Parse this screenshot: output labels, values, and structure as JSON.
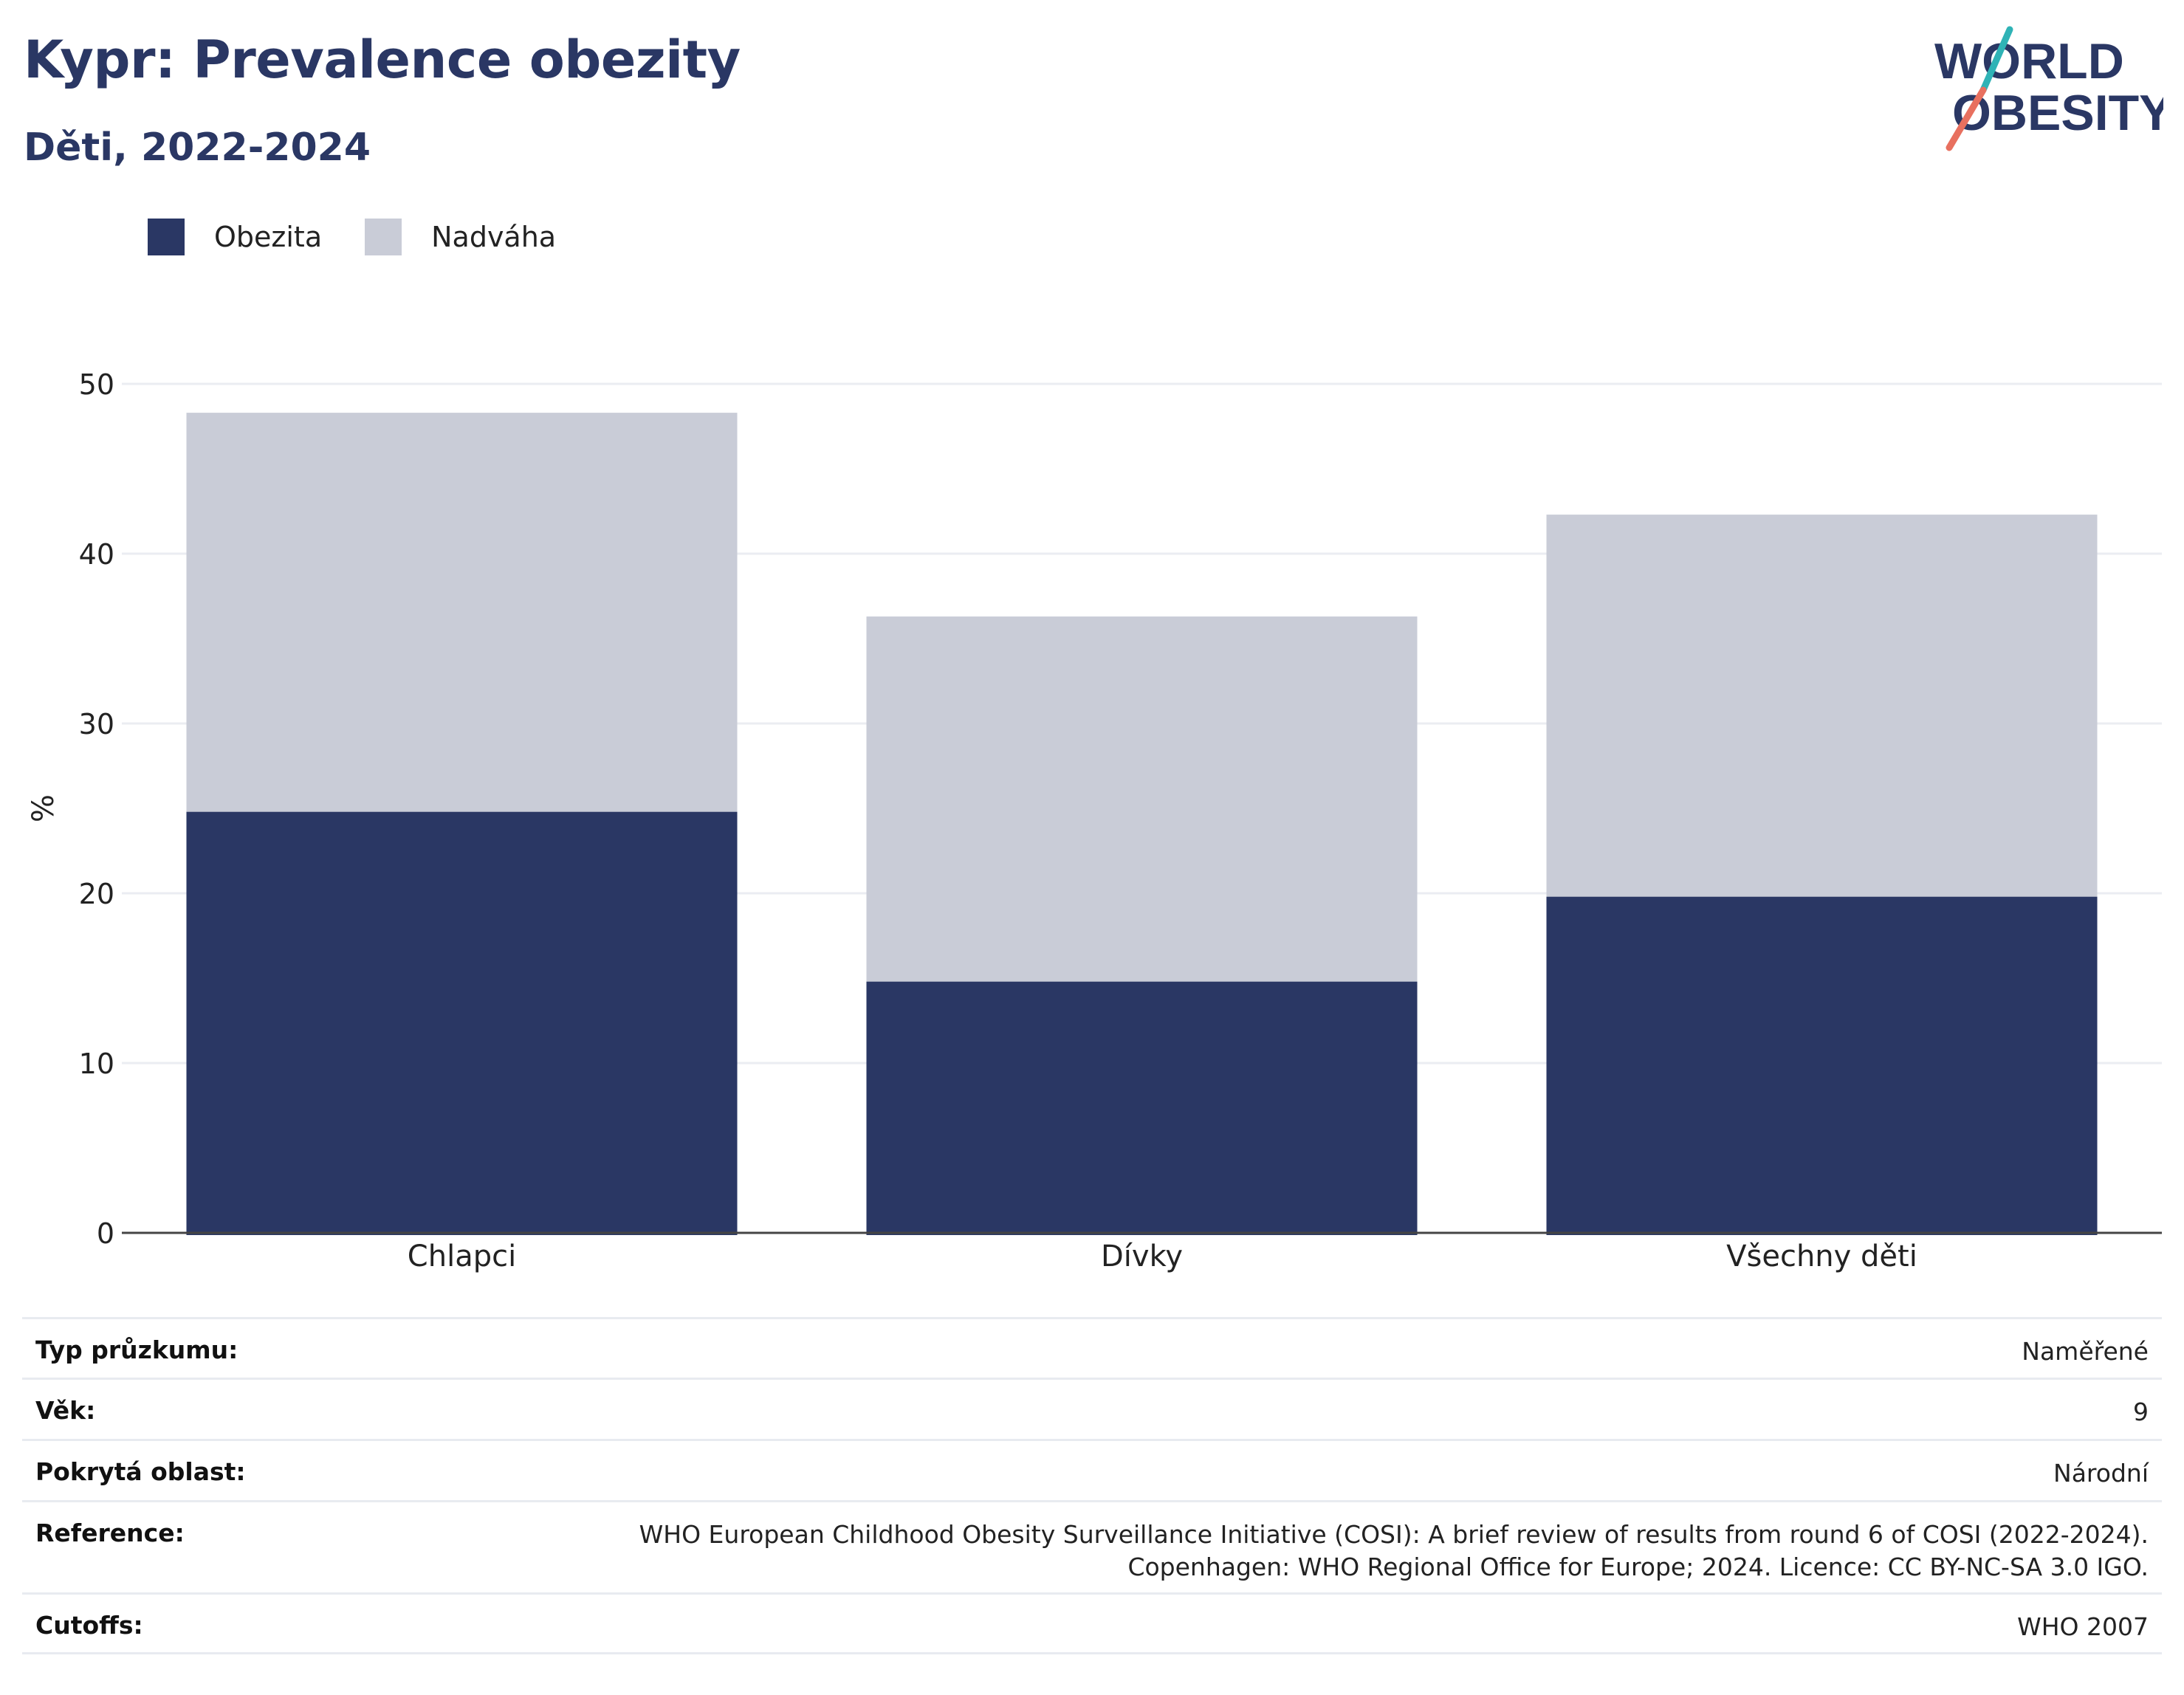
{
  "header": {
    "title": "Kypr: Prevalence obezity",
    "subtitle": "Děti, 2022-2024"
  },
  "logo": {
    "line1": "WORLD",
    "line2": "OBESITY",
    "colors": {
      "text": "#2a3764",
      "accent_teal": "#2fb3b6",
      "accent_coral": "#e8705f"
    }
  },
  "chart_data": {
    "type": "bar",
    "stacked": true,
    "categories": [
      "Chlapci",
      "Dívky",
      "Všechny děti"
    ],
    "series": [
      {
        "name": "Obezita",
        "values": [
          24.8,
          14.8,
          19.8
        ],
        "color": "#2a3764"
      },
      {
        "name": "Nadváha",
        "values": [
          23.5,
          21.5,
          22.5
        ],
        "color": "#c9ccd7"
      }
    ],
    "ylabel": "%",
    "ylim": [
      0,
      50
    ],
    "yticks": [
      "0",
      "10",
      "20",
      "30",
      "40",
      "50"
    ],
    "grid": true,
    "legend_position": "top-left"
  },
  "meta": {
    "rows": [
      {
        "label": "Typ průzkumu:",
        "value": "Naměřené"
      },
      {
        "label": "Věk:",
        "value": "9"
      },
      {
        "label": "Pokrytá oblast:",
        "value": "Národní"
      },
      {
        "label": "Reference:",
        "value": "WHO European Childhood Obesity Surveillance Initiative (COSI): A brief review of results from round 6 of COSI (2022-2024).",
        "value2": "Copenhagen: WHO Regional Office for Europe; 2024. Licence: CC BY-NC-SA 3.0 IGO."
      },
      {
        "label": "Cutoffs:",
        "value": "WHO 2007"
      }
    ]
  }
}
